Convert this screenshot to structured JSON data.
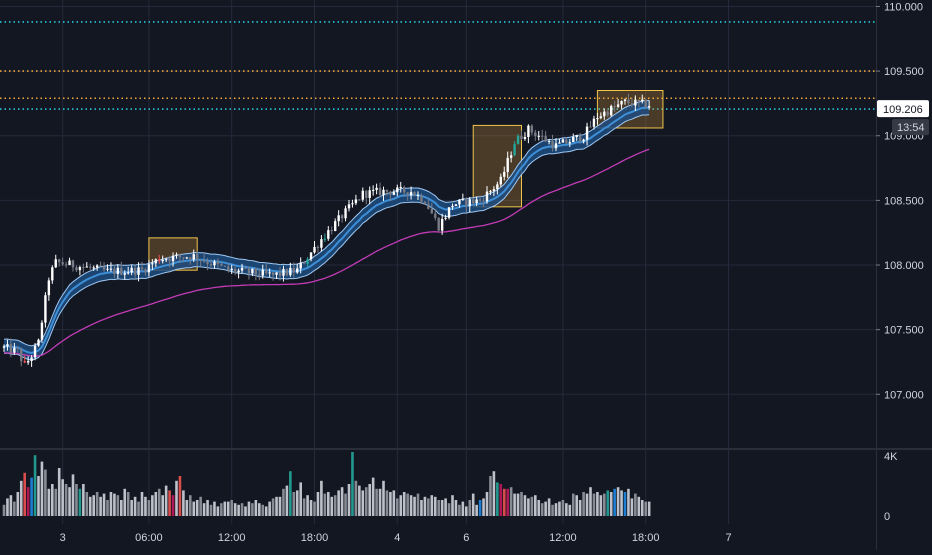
{
  "colors": {
    "background": "#131722",
    "grid": "#242a3b",
    "axis_text": "#d1d4dc",
    "candle_up": "#ffffff",
    "candle_down": "#787b86",
    "candle_green": "#26a69a",
    "candle_red": "#ef5350",
    "band_fill": "#1e4c7f",
    "band_line": "#3d8fd8",
    "band_outer": "#9ec9f5",
    "slow_ma": "#c13bb5",
    "cyan_line": "#26c6da",
    "orange_line": "#f0a63a",
    "box_fill": "rgba(240,166,58,0.25)",
    "box_stroke": "#f0c34a",
    "price_tag_bg": "#ffffff",
    "price_tag_text": "#131722",
    "timer_bg": "#363a45"
  },
  "price_axis": {
    "ticks": [
      "110.000",
      "109.500",
      "109.000",
      "108.500",
      "108.000",
      "107.500",
      "107.000"
    ],
    "current_price_label": "109.206",
    "countdown_label": "13:54"
  },
  "volume_axis": {
    "ticks": [
      "4K",
      "0"
    ]
  },
  "time_axis": {
    "ticks": [
      "3",
      "06:00",
      "12:00",
      "18:00",
      "4",
      "6",
      "12:00",
      "18:00",
      "7"
    ]
  },
  "chart_data": {
    "type": "candlestick",
    "ylim": [
      106.6,
      110.05
    ],
    "volume_ylim": [
      0,
      4000
    ],
    "time_ticks": [
      {
        "label": "3",
        "index": 17
      },
      {
        "label": "06:00",
        "index": 42
      },
      {
        "label": "12:00",
        "index": 66
      },
      {
        "label": "18:00",
        "index": 90
      },
      {
        "label": "4",
        "index": 114
      },
      {
        "label": "6",
        "index": 134
      },
      {
        "label": "12:00",
        "index": 162
      },
      {
        "label": "18:00",
        "index": 186
      },
      {
        "label": "7",
        "index": 210
      }
    ],
    "horizontal_levels": [
      {
        "price": 109.88,
        "style": "cyan"
      },
      {
        "price": 109.5,
        "style": "orange"
      },
      {
        "price": 109.29,
        "style": "orange"
      },
      {
        "price": 109.206,
        "style": "cyan"
      }
    ],
    "highlight_zones": [
      {
        "start": 42,
        "end": 56,
        "low": 107.96,
        "high": 108.21
      },
      {
        "start": 136,
        "end": 150,
        "low": 108.45,
        "high": 109.08
      },
      {
        "start": 172,
        "end": 191,
        "low": 109.06,
        "high": 109.35
      }
    ],
    "volume": [
      700,
      1100,
      1300,
      900,
      1500,
      2200,
      2700,
      1800,
      2400,
      3800,
      2500,
      3400,
      2900,
      1700,
      2000,
      1700,
      3000,
      2300,
      2000,
      1800,
      2600,
      2000,
      1700,
      2000,
      1500,
      1200,
      1300,
      1500,
      1200,
      1400,
      1000,
      1500,
      1400,
      1300,
      1000,
      1700,
      1500,
      1000,
      1200,
      900,
      1500,
      1200,
      1000,
      1300,
      1500,
      1700,
      1300,
      1900,
      1600,
      1300,
      2200,
      2500,
      1600,
      1000,
      1300,
      900,
      1000,
      1200,
      800,
      1000,
      700,
      900,
      600,
      800,
      900,
      900,
      1000,
      800,
      700,
      800,
      600,
      900,
      800,
      1000,
      800,
      700,
      600,
      900,
      1100,
      1200,
      1200,
      1700,
      1900,
      2800,
      1500,
      1600,
      2100,
      1100,
      1300,
      1000,
      900,
      1500,
      2200,
      1400,
      1500,
      1200,
      1300,
      1600,
      1800,
      1400,
      2000,
      4000,
      2200,
      1900,
      1600,
      1800,
      2000,
      2400,
      1700,
      1700,
      2200,
      1600,
      1500,
      1600,
      1100,
      1300,
      1500,
      1400,
      1300,
      1200,
      1400,
      1000,
      1200,
      1100,
      1300,
      1200,
      1000,
      1000,
      1100,
      800,
      1300,
      1000,
      700,
      900,
      600,
      1000,
      1400,
      700,
      1000,
      1100,
      1500,
      2500,
      2800,
      2100,
      2000,
      1700,
      1700,
      1800,
      1400,
      1400,
      1500,
      1300,
      1100,
      1200,
      1300,
      1000,
      800,
      900,
      1100,
      700,
      800,
      900,
      1000,
      800,
      700,
      1400,
      1300,
      1000,
      1500,
      1400,
      1800,
      1400,
      1500,
      1300,
      1400,
      1600,
      1500,
      1700,
      1800,
      1600,
      1500,
      1700,
      1100,
      1400,
      1200,
      1000,
      900,
      900
    ]
  }
}
